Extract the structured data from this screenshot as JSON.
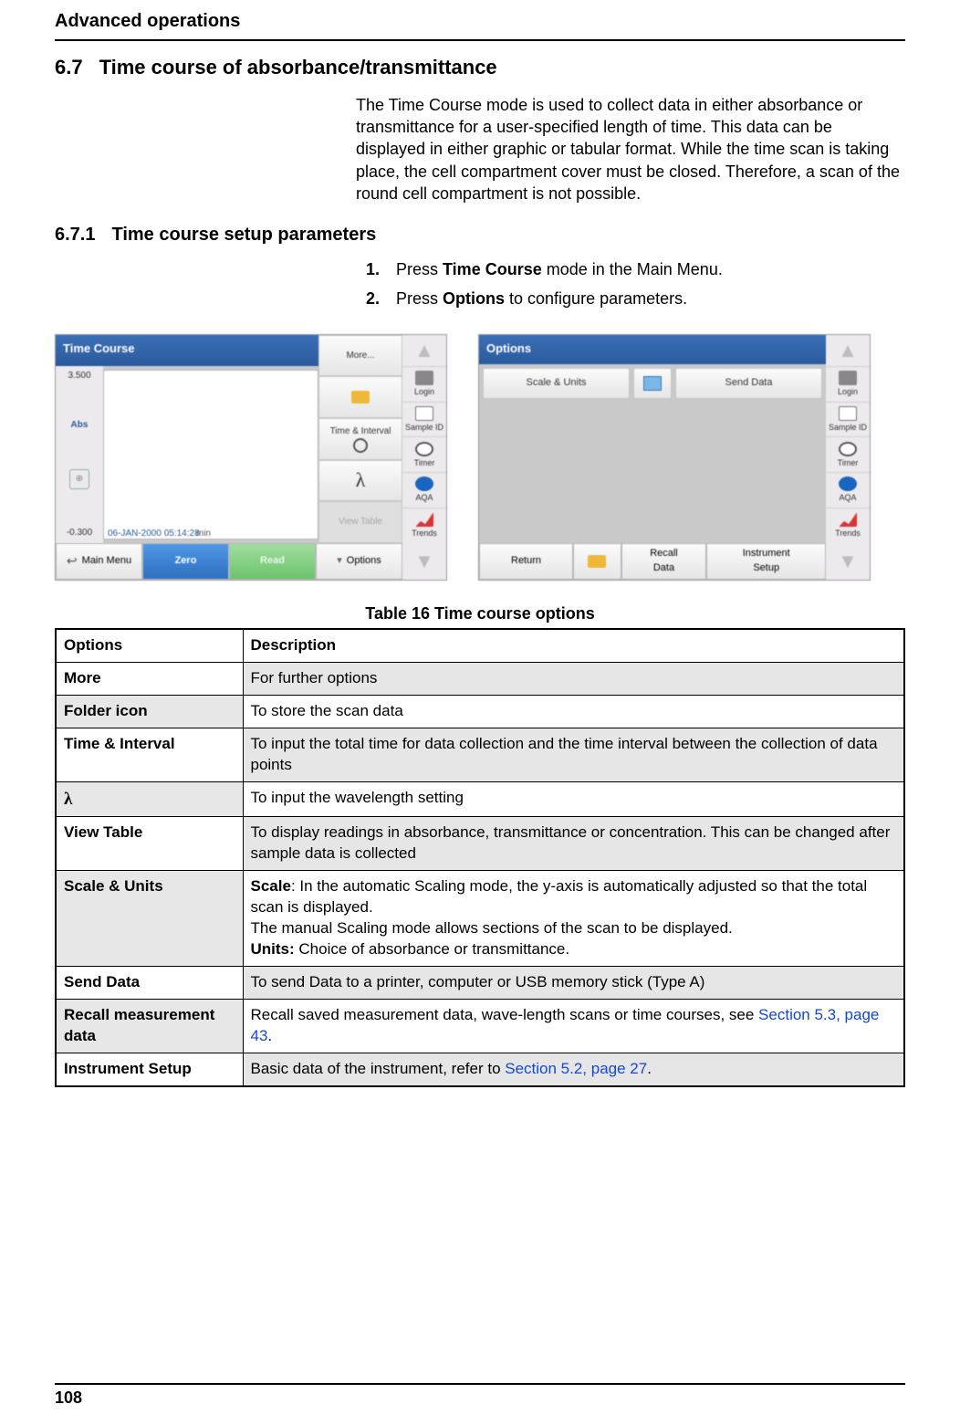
{
  "header": {
    "running": "Advanced operations"
  },
  "sec": {
    "num": "6.7",
    "title": "Time course of absorbance/transmittance",
    "intro": "The Time Course mode is used to collect data in either absorbance or transmittance for a user-specified length of time. This data can be displayed in either graphic or tabular format. While the time scan is taking place, the cell compartment cover must be closed. Therefore, a scan of the round cell compartment is not possible."
  },
  "sub": {
    "num": "6.7.1",
    "title": "Time course setup parameters",
    "step1_pre": "Press ",
    "step1_bold": "Time Course",
    "step1_post": " mode in the Main Menu.",
    "step2_pre": "Press ",
    "step2_bold": "Options",
    "step2_post": " to configure parameters."
  },
  "shotsA": {
    "title": "Time Course",
    "ytop": "3.500",
    "abs": "Abs",
    "ybot": "-0.300",
    "date": "06-JAN-2000  05:14:28",
    "min": "min",
    "opt_more": "More...",
    "opt_time": "Time & Interval",
    "opt_view": "View Table",
    "b_menu": "Main Menu",
    "b_zero": "Zero",
    "b_read": "Read",
    "b_opts": "Options",
    "r_login": "Login",
    "r_sid": "Sample ID",
    "r_timer": "Timer",
    "r_aqa": "AQA",
    "r_trends": "Trends"
  },
  "shotsB": {
    "title": "Options",
    "b_scale": "Scale & Units",
    "b_send": "Send Data",
    "b_return": "Return",
    "b_recall1": "Recall",
    "b_recall2": "Data",
    "b_is1": "Instrument",
    "b_is2": "Setup",
    "r_login": "Login",
    "r_sid": "Sample ID",
    "r_timer": "Timer",
    "r_aqa": "AQA",
    "r_trends": "Trends"
  },
  "table": {
    "caption": "Table 16 Time course options",
    "h1": "Options",
    "h2": "Description",
    "rows": {
      "r1k": "More",
      "r1v": "For further options",
      "r2k": "Folder icon",
      "r2v": "To store the scan data",
      "r3k": "Time & Interval",
      "r3v": "To input the total time for data collection and the time interval between the collection of data points",
      "r4k": "λ",
      "r4v": "To input the wavelength setting",
      "r5k": "View Table",
      "r5v": "To display readings in absorbance, transmittance or concentration. This can be changed after sample data is collected",
      "r6k": "Scale & Units",
      "r6v_b1": "Scale",
      "r6v_t1": ": In the automatic Scaling mode, the y-axis is automatically adjusted so that the total scan is displayed.",
      "r6v_t2": "The manual Scaling mode allows sections of the scan to be displayed.",
      "r6v_b2": "Units:",
      "r6v_t3": " Choice of absorbance or transmittance.",
      "r7k": "Send Data",
      "r7v": "To send Data to a printer, computer or USB memory stick (Type A)",
      "r8k": "Recall measurement data",
      "r8v_t": "Recall saved measurement data, wave-length scans or time courses, see ",
      "r8v_l": "Section 5.3, page 43",
      "r8v_p": ".",
      "r9k": "Instrument Setup",
      "r9v_t": "Basic data of the instrument, refer to ",
      "r9v_l": "Section 5.2, page 27",
      "r9v_p": "."
    }
  },
  "footer": {
    "page": "108"
  }
}
